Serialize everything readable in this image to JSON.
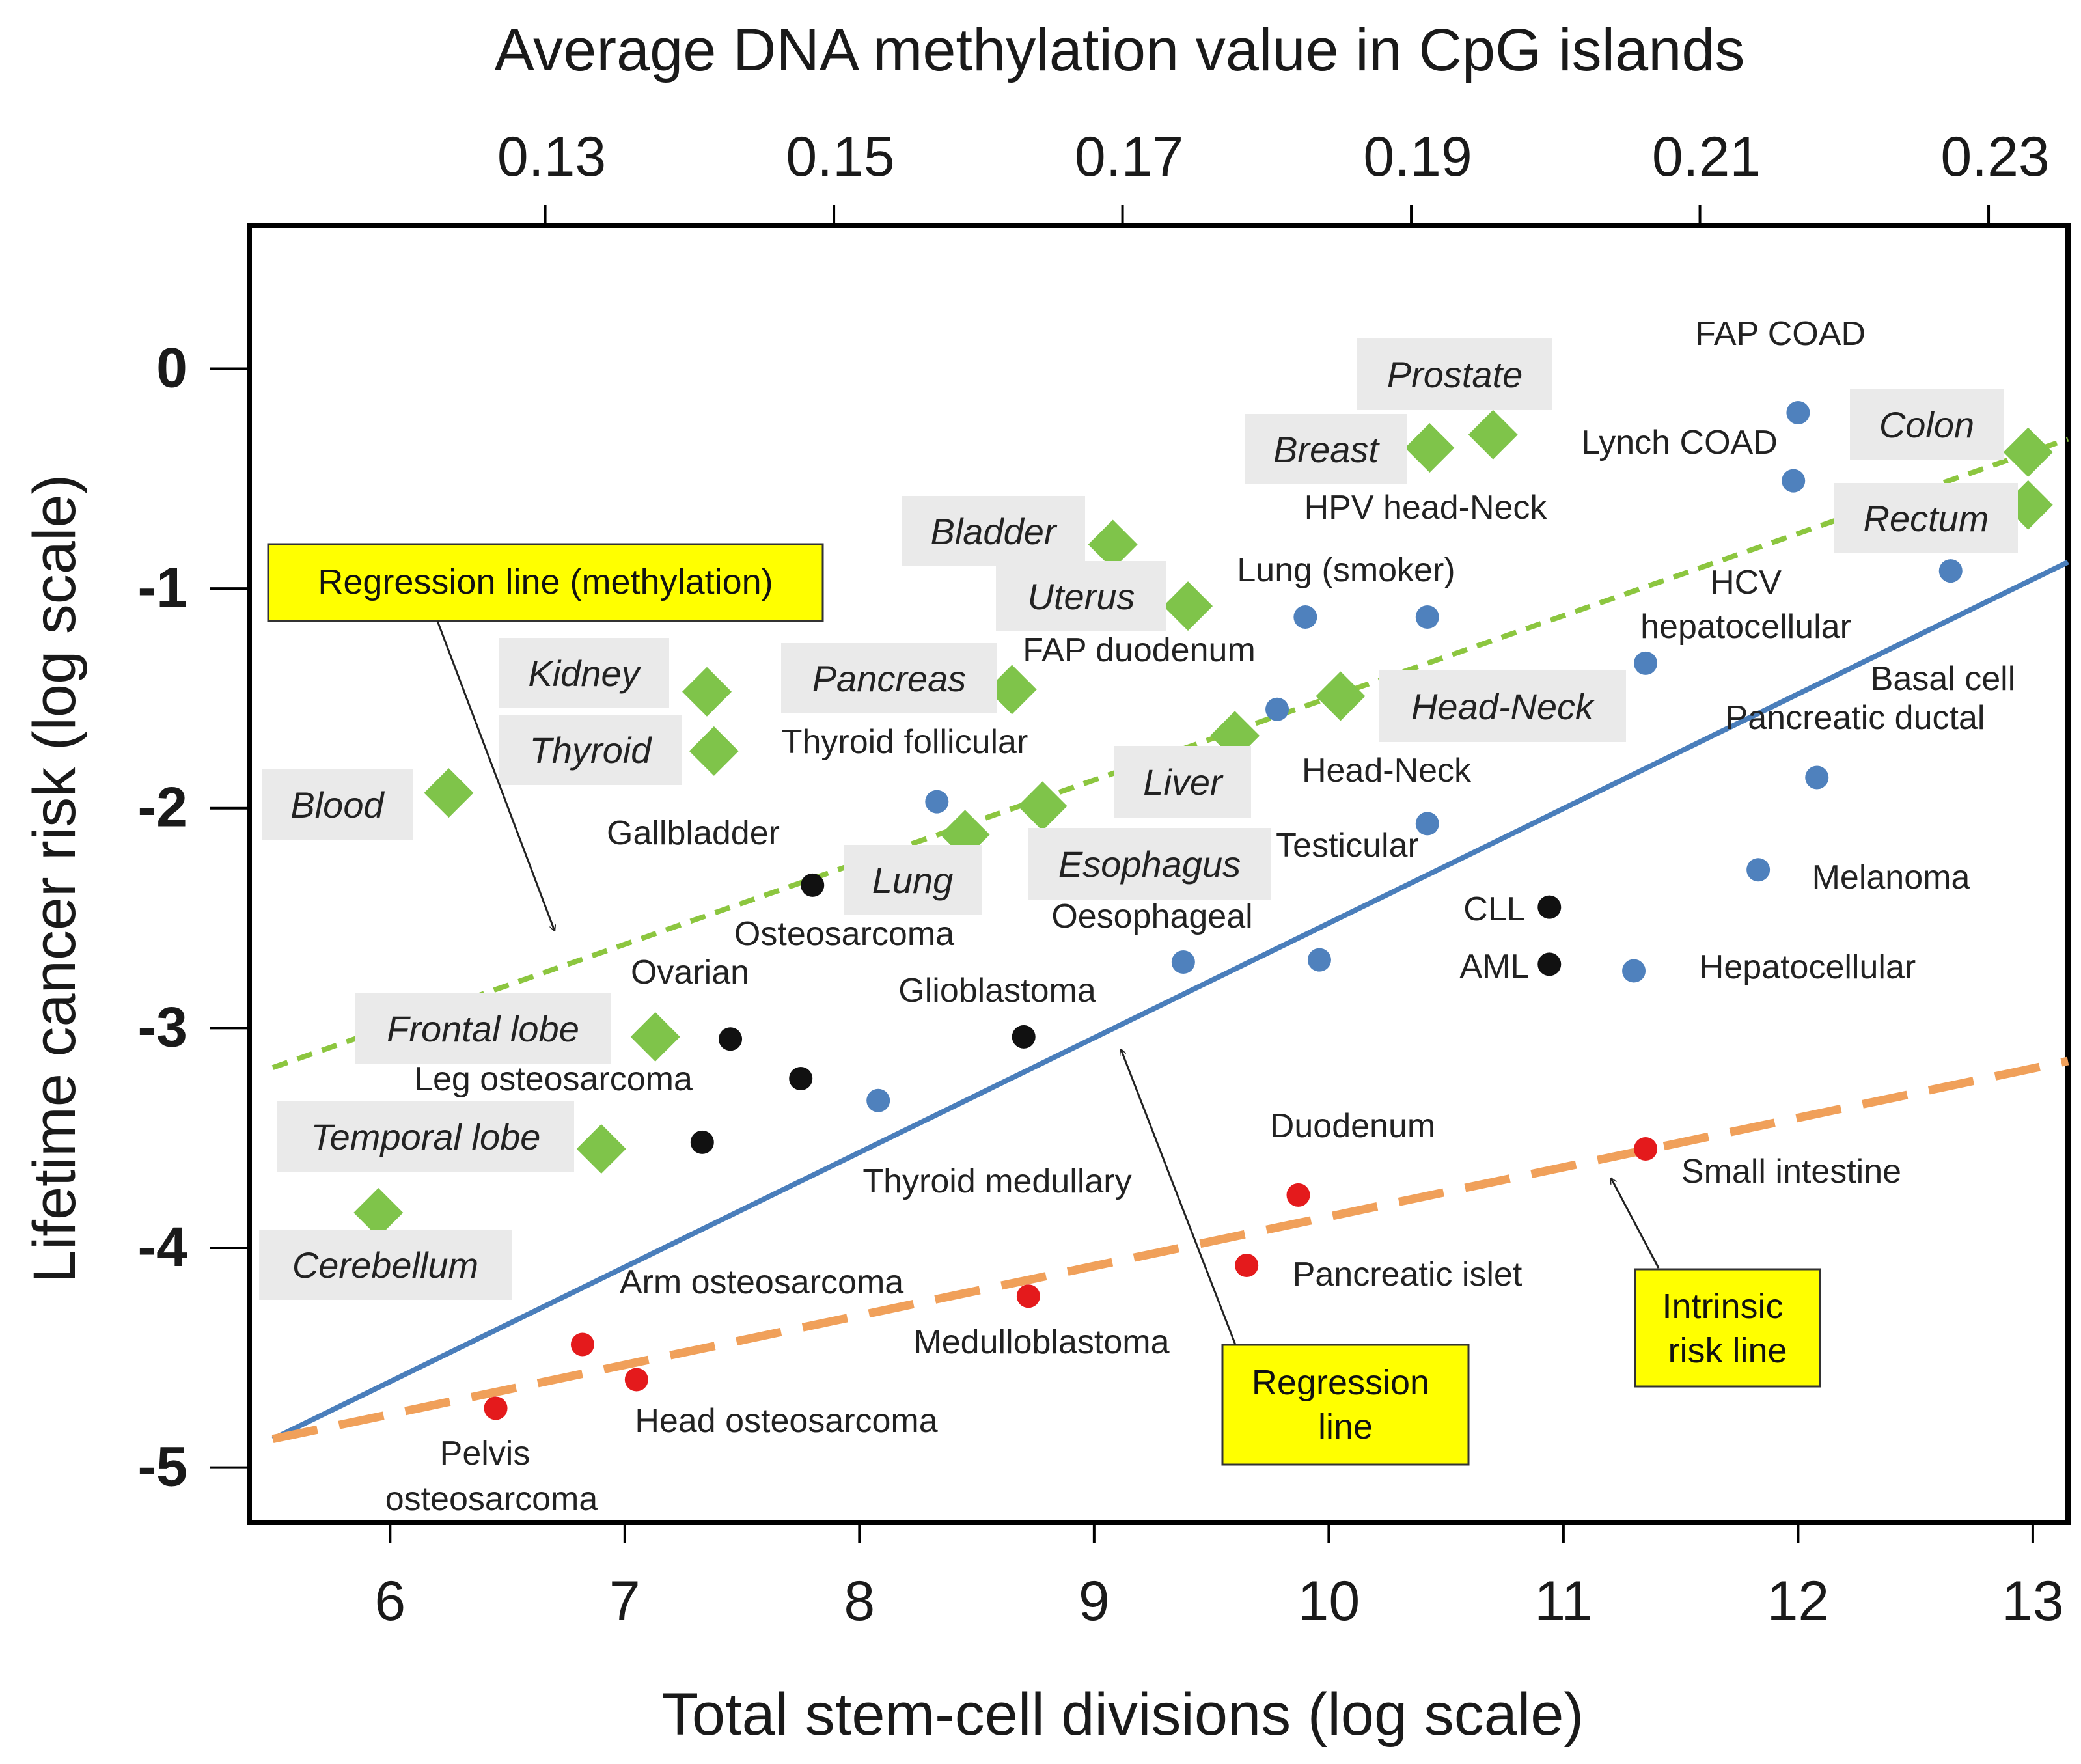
{
  "chart_data": {
    "type": "scatter",
    "title": "",
    "xlabel": "Total stem-cell divisions (log scale)",
    "ylabel": "Lifetime cancer risk (log scale)",
    "x2label": "Average DNA methylation value in CpG islands",
    "xlim": [
      5.4,
      13.15
    ],
    "ylim": [
      -5.25,
      0.65
    ],
    "x2lim": [
      0.1095,
      0.2355
    ],
    "xticks": [
      6,
      7,
      8,
      9,
      10,
      11,
      12,
      13
    ],
    "yticks": [
      0,
      -1,
      -2,
      -3,
      -4,
      -5
    ],
    "x2ticks": [
      "0.13",
      "0.15",
      "0.17",
      "0.19",
      "0.21",
      "0.23"
    ],
    "x2tick_values": [
      0.13,
      0.15,
      0.17,
      0.19,
      0.21,
      0.23
    ],
    "lines": [
      {
        "name": "Regression line",
        "style": "solid",
        "color": "#4a7ebb",
        "points": [
          [
            5.5,
            -4.87
          ],
          [
            13.15,
            -0.88
          ]
        ]
      },
      {
        "name": "Regression line (methylation)",
        "style": "short-dash",
        "color": "#8cc63f",
        "points": [
          [
            5.5,
            -3.18
          ],
          [
            13.15,
            -0.32
          ]
        ]
      },
      {
        "name": "Intrinsic risk line",
        "style": "long-dash",
        "color": "#f0a05a",
        "points": [
          [
            5.5,
            -4.87
          ],
          [
            13.15,
            -3.15
          ]
        ]
      }
    ],
    "points": [
      {
        "name": "FAP COAD",
        "x": 12.0,
        "y": -0.2,
        "color": "#4f81bd"
      },
      {
        "name": "Lynch COAD",
        "x": 11.98,
        "y": -0.51,
        "color": "#4f81bd"
      },
      {
        "name": "HPV head-Neck",
        "x": 10.42,
        "y": -1.13,
        "color": "#4f81bd"
      },
      {
        "name": "Lung (smoker)",
        "x": 9.9,
        "y": -1.13,
        "color": "#4f81bd"
      },
      {
        "name": "HCV hepatocellular",
        "x": 11.35,
        "y": -1.34,
        "color": "#4f81bd"
      },
      {
        "name": "Basal cell",
        "x": 12.65,
        "y": -0.92,
        "color": "#4f81bd"
      },
      {
        "name": "FAP duodenum",
        "x": 9.78,
        "y": -1.55,
        "color": "#4f81bd"
      },
      {
        "name": "Thyroid follicular",
        "x": 8.33,
        "y": -1.97,
        "color": "#4f81bd"
      },
      {
        "name": "Pancreatic ductal",
        "x": 12.08,
        "y": -1.86,
        "color": "#4f81bd"
      },
      {
        "name": "Head-Neck",
        "x": 10.42,
        "y": -2.07,
        "color": "#4f81bd"
      },
      {
        "name": "Melanoma",
        "x": 11.83,
        "y": -2.28,
        "color": "#4f81bd"
      },
      {
        "name": "Oesophageal",
        "x": 9.38,
        "y": -2.7,
        "color": "#4f81bd"
      },
      {
        "name": "Testicular",
        "x": 9.96,
        "y": -2.69,
        "color": "#4f81bd"
      },
      {
        "name": "Hepatocellular",
        "x": 11.3,
        "y": -2.74,
        "color": "#4f81bd"
      },
      {
        "name": "Thyroid medullary",
        "x": 8.08,
        "y": -3.33,
        "color": "#4f81bd"
      },
      {
        "name": "CLL",
        "x": 10.94,
        "y": -2.45,
        "color": "#111111"
      },
      {
        "name": "AML",
        "x": 10.94,
        "y": -2.71,
        "color": "#111111"
      },
      {
        "name": "Gallbladder",
        "x": 7.8,
        "y": -2.35,
        "color": "#111111"
      },
      {
        "name": "Glioblastoma",
        "x": 8.7,
        "y": -3.04,
        "color": "#111111"
      },
      {
        "name": "Ovarian",
        "x": 7.45,
        "y": -3.05,
        "color": "#111111"
      },
      {
        "name": "Osteosarcoma",
        "x": 7.75,
        "y": -3.23,
        "color": "#111111"
      },
      {
        "name": "Leg osteosarcoma",
        "x": 7.33,
        "y": -3.52,
        "color": "#111111"
      },
      {
        "name": "Small intestine",
        "x": 11.35,
        "y": -3.55,
        "color": "#e41a1c"
      },
      {
        "name": "Duodenum",
        "x": 9.87,
        "y": -3.76,
        "color": "#e41a1c"
      },
      {
        "name": "Pancreatic islet",
        "x": 9.65,
        "y": -4.08,
        "color": "#e41a1c"
      },
      {
        "name": "Medulloblastoma",
        "x": 8.72,
        "y": -4.22,
        "color": "#e41a1c"
      },
      {
        "name": "Arm osteosarcoma",
        "x": 6.82,
        "y": -4.44,
        "color": "#e41a1c"
      },
      {
        "name": "Head osteosarcoma",
        "x": 7.05,
        "y": -4.6,
        "color": "#e41a1c"
      },
      {
        "name": "Pelvis osteosarcoma",
        "x": 6.45,
        "y": -4.73,
        "color": "#e41a1c"
      }
    ],
    "tissues": [
      {
        "name": "Prostate",
        "x": 10.7,
        "y": -0.3
      },
      {
        "name": "Breast",
        "x": 10.43,
        "y": -0.36
      },
      {
        "name": "Colon",
        "x": 12.98,
        "y": -0.38
      },
      {
        "name": "Rectum",
        "x": 12.98,
        "y": -0.62
      },
      {
        "name": "Bladder",
        "x": 9.08,
        "y": -0.8
      },
      {
        "name": "Uterus",
        "x": 9.4,
        "y": -1.08
      },
      {
        "name": "Kidney",
        "x": 7.35,
        "y": -1.47
      },
      {
        "name": "Pancreas",
        "x": 8.65,
        "y": -1.46
      },
      {
        "name": "Thyroid",
        "x": 7.38,
        "y": -1.74
      },
      {
        "name": "Head-Neck",
        "x": 10.05,
        "y": -1.49
      },
      {
        "name": "Liver",
        "x": 9.6,
        "y": -1.67
      },
      {
        "name": "Blood",
        "x": 6.25,
        "y": -1.93
      },
      {
        "name": "Esophagus",
        "x": 8.78,
        "y": -1.99
      },
      {
        "name": "Lung",
        "x": 8.45,
        "y": -2.12
      },
      {
        "name": "Frontal lobe",
        "x": 7.13,
        "y": -3.04
      },
      {
        "name": "Temporal lobe",
        "x": 6.9,
        "y": -3.55
      },
      {
        "name": "Cerebellum",
        "x": 5.95,
        "y": -3.84
      }
    ],
    "annotations": [
      {
        "text": "Regression  line (methylation)",
        "bg": "#ffff00"
      },
      {
        "text": "Regression line",
        "bg": "#ffff00"
      },
      {
        "text": "Intrinsic risk line",
        "bg": "#ffff00"
      }
    ]
  }
}
